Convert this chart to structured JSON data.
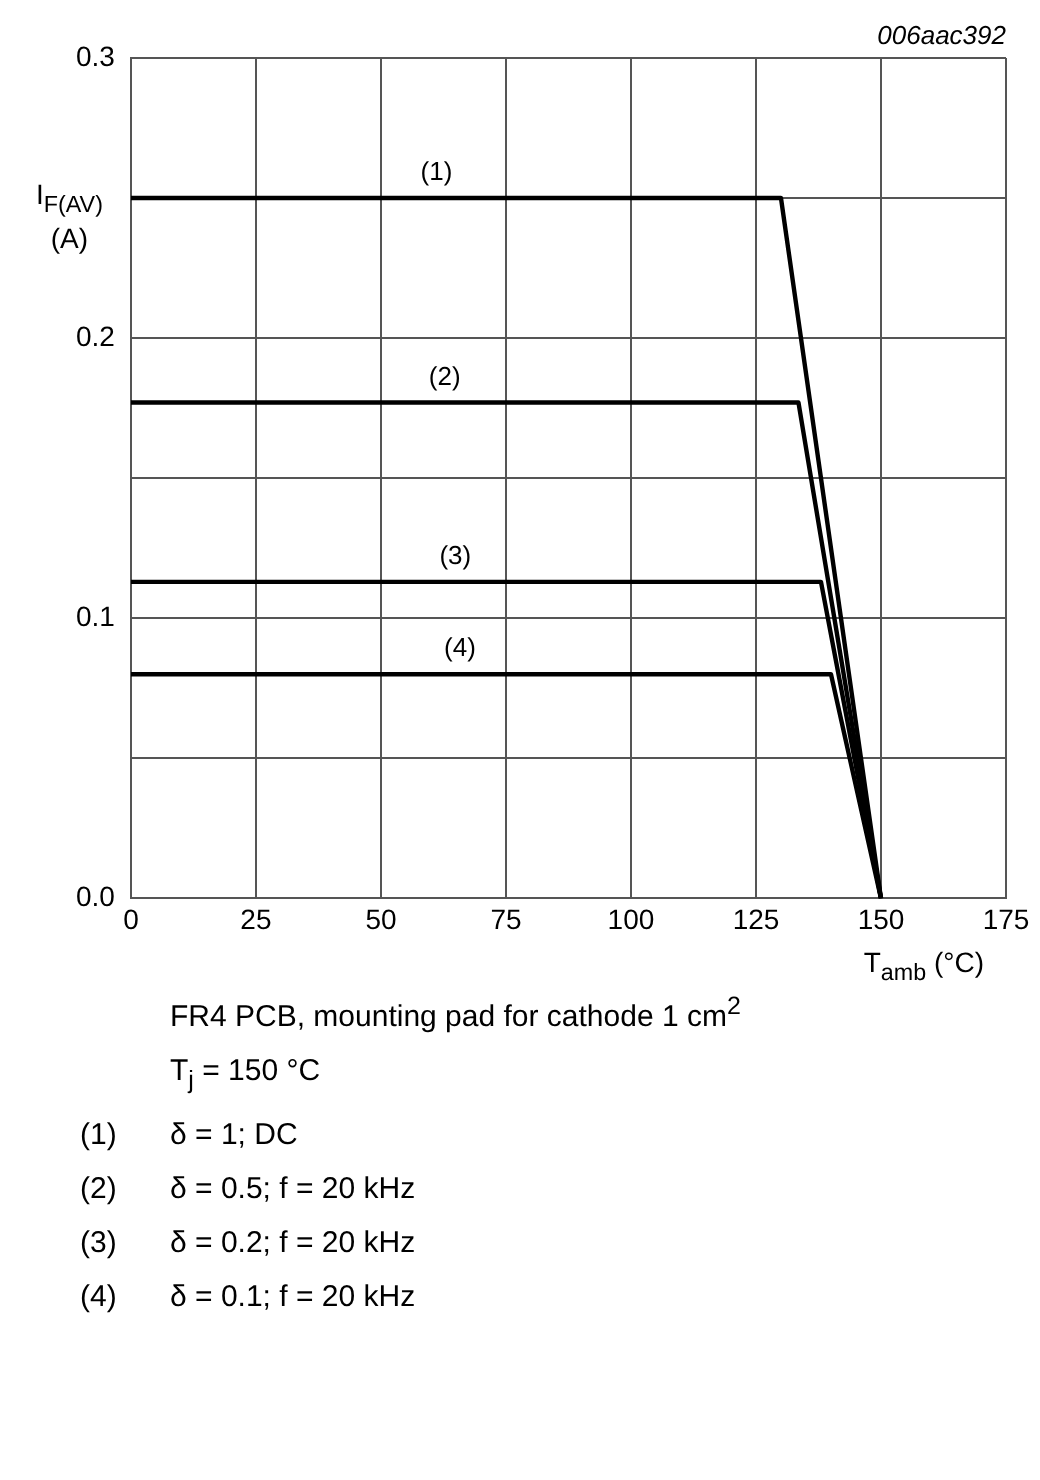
{
  "chart_data": {
    "type": "line",
    "xlabel": "T$_{amb}$ (°C)",
    "ylabel": "I$_{F(AV)}$ (A)",
    "xlim": [
      0,
      175
    ],
    "xticks": [
      0,
      25,
      50,
      75,
      100,
      125,
      150,
      175
    ],
    "ylim": [
      0,
      0.3
    ],
    "yticks": [
      {
        "value": 0,
        "label": "0.0"
      },
      {
        "value": 0.05,
        "label": null
      },
      0.1,
      {
        "value": 0.15,
        "label": null
      },
      0.2,
      {
        "value": 0.25,
        "label": null
      },
      0.3
    ],
    "grid": true,
    "legend": false,
    "marker": "none",
    "line_style": "solid",
    "series": [
      {
        "name": "(1)",
        "color": "#000000",
        "x": [
          0,
          130,
          150
        ],
        "values": [
          0.25,
          0.25,
          0
        ]
      },
      {
        "name": "(2)",
        "color": "#000000",
        "x": [
          0,
          133.5,
          150
        ],
        "values": [
          0.177,
          0.177,
          0
        ]
      },
      {
        "name": "(3)",
        "color": "#000000",
        "x": [
          0,
          138,
          150
        ],
        "values": [
          0.113,
          0.113,
          0
        ]
      },
      {
        "name": "(4)",
        "color": "#000000",
        "x": [
          0,
          140,
          150
        ],
        "values": [
          0.08,
          0.08,
          0
        ]
      }
    ],
    "annotations": [
      "006aac392",
      "FR4 PCB, mounting pad for cathode 1 cm$^{2}$",
      "T$_{j}$ = 150 °C",
      "(1)  δ = 1; DC",
      "(2)  δ = 0.5; f = 20 kHz",
      "(3)  δ = 0.2; f = 20 kHz",
      "(4)  δ = 0.1; f = 20 kHz"
    ]
  }
}
